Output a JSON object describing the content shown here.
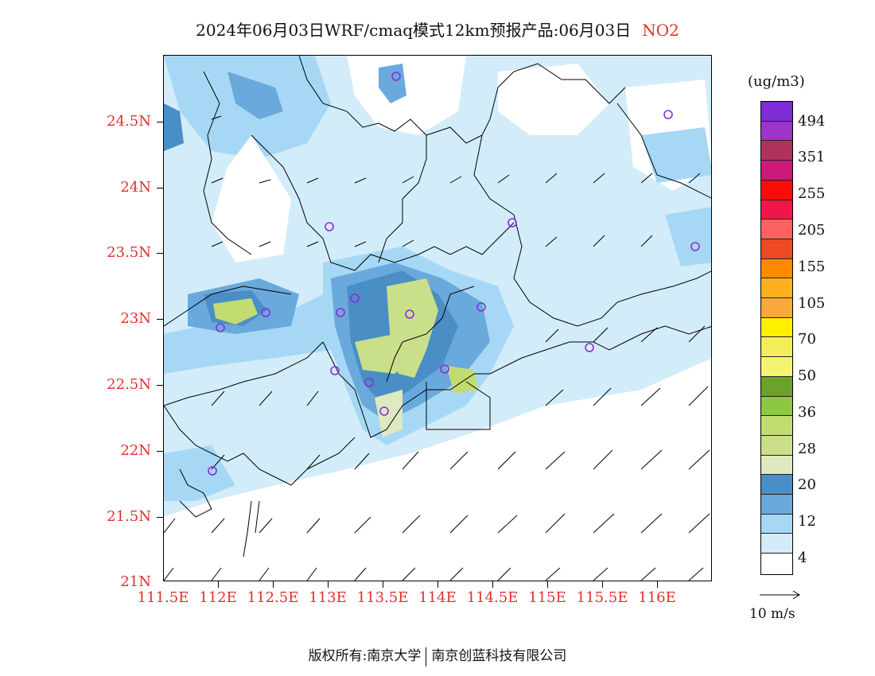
{
  "title": {
    "text": "2024年06月03日WRF/cmaq模式12km预报产品:06月03日",
    "species": "NO2"
  },
  "axes": {
    "y_labels": [
      "24.5N",
      "24N",
      "23.5N",
      "23N",
      "22.5N",
      "22N",
      "21.5N",
      "21N"
    ],
    "x_labels": [
      "111.5E",
      "112E",
      "112.5E",
      "113E",
      "113.5E",
      "114E",
      "114.5E",
      "115E",
      "115.5E",
      "116E"
    ]
  },
  "legend": {
    "unit": "(ug/m3)",
    "labels": [
      "494",
      "351",
      "255",
      "205",
      "155",
      "105",
      "70",
      "50",
      "36",
      "28",
      "20",
      "12",
      "4"
    ],
    "colors": [
      "#7f2bd6",
      "#9b36c8",
      "#b0325c",
      "#cc1a78",
      "#ff0a0a",
      "#ee1848",
      "#ff6060",
      "#ec4a22",
      "#ff8a00",
      "#ffb020",
      "#f9a83a",
      "#fff000",
      "#f5ec5a",
      "#f3f56e",
      "#6aa22a",
      "#8cc840",
      "#c2dc72",
      "#cadf8a",
      "#dfe9c0",
      "#4a8ec6",
      "#6aa9dc",
      "#a6d8f5",
      "#d3ecfa",
      "#ffffff"
    ]
  },
  "wind_reference": {
    "label": "10 m/s"
  },
  "footer": {
    "left": "版权所有:南京大学",
    "right": "南京创蓝科技有限公司"
  },
  "palette": {
    "accent_red": "#e0302e",
    "station_marker": "#8e2bd6"
  }
}
